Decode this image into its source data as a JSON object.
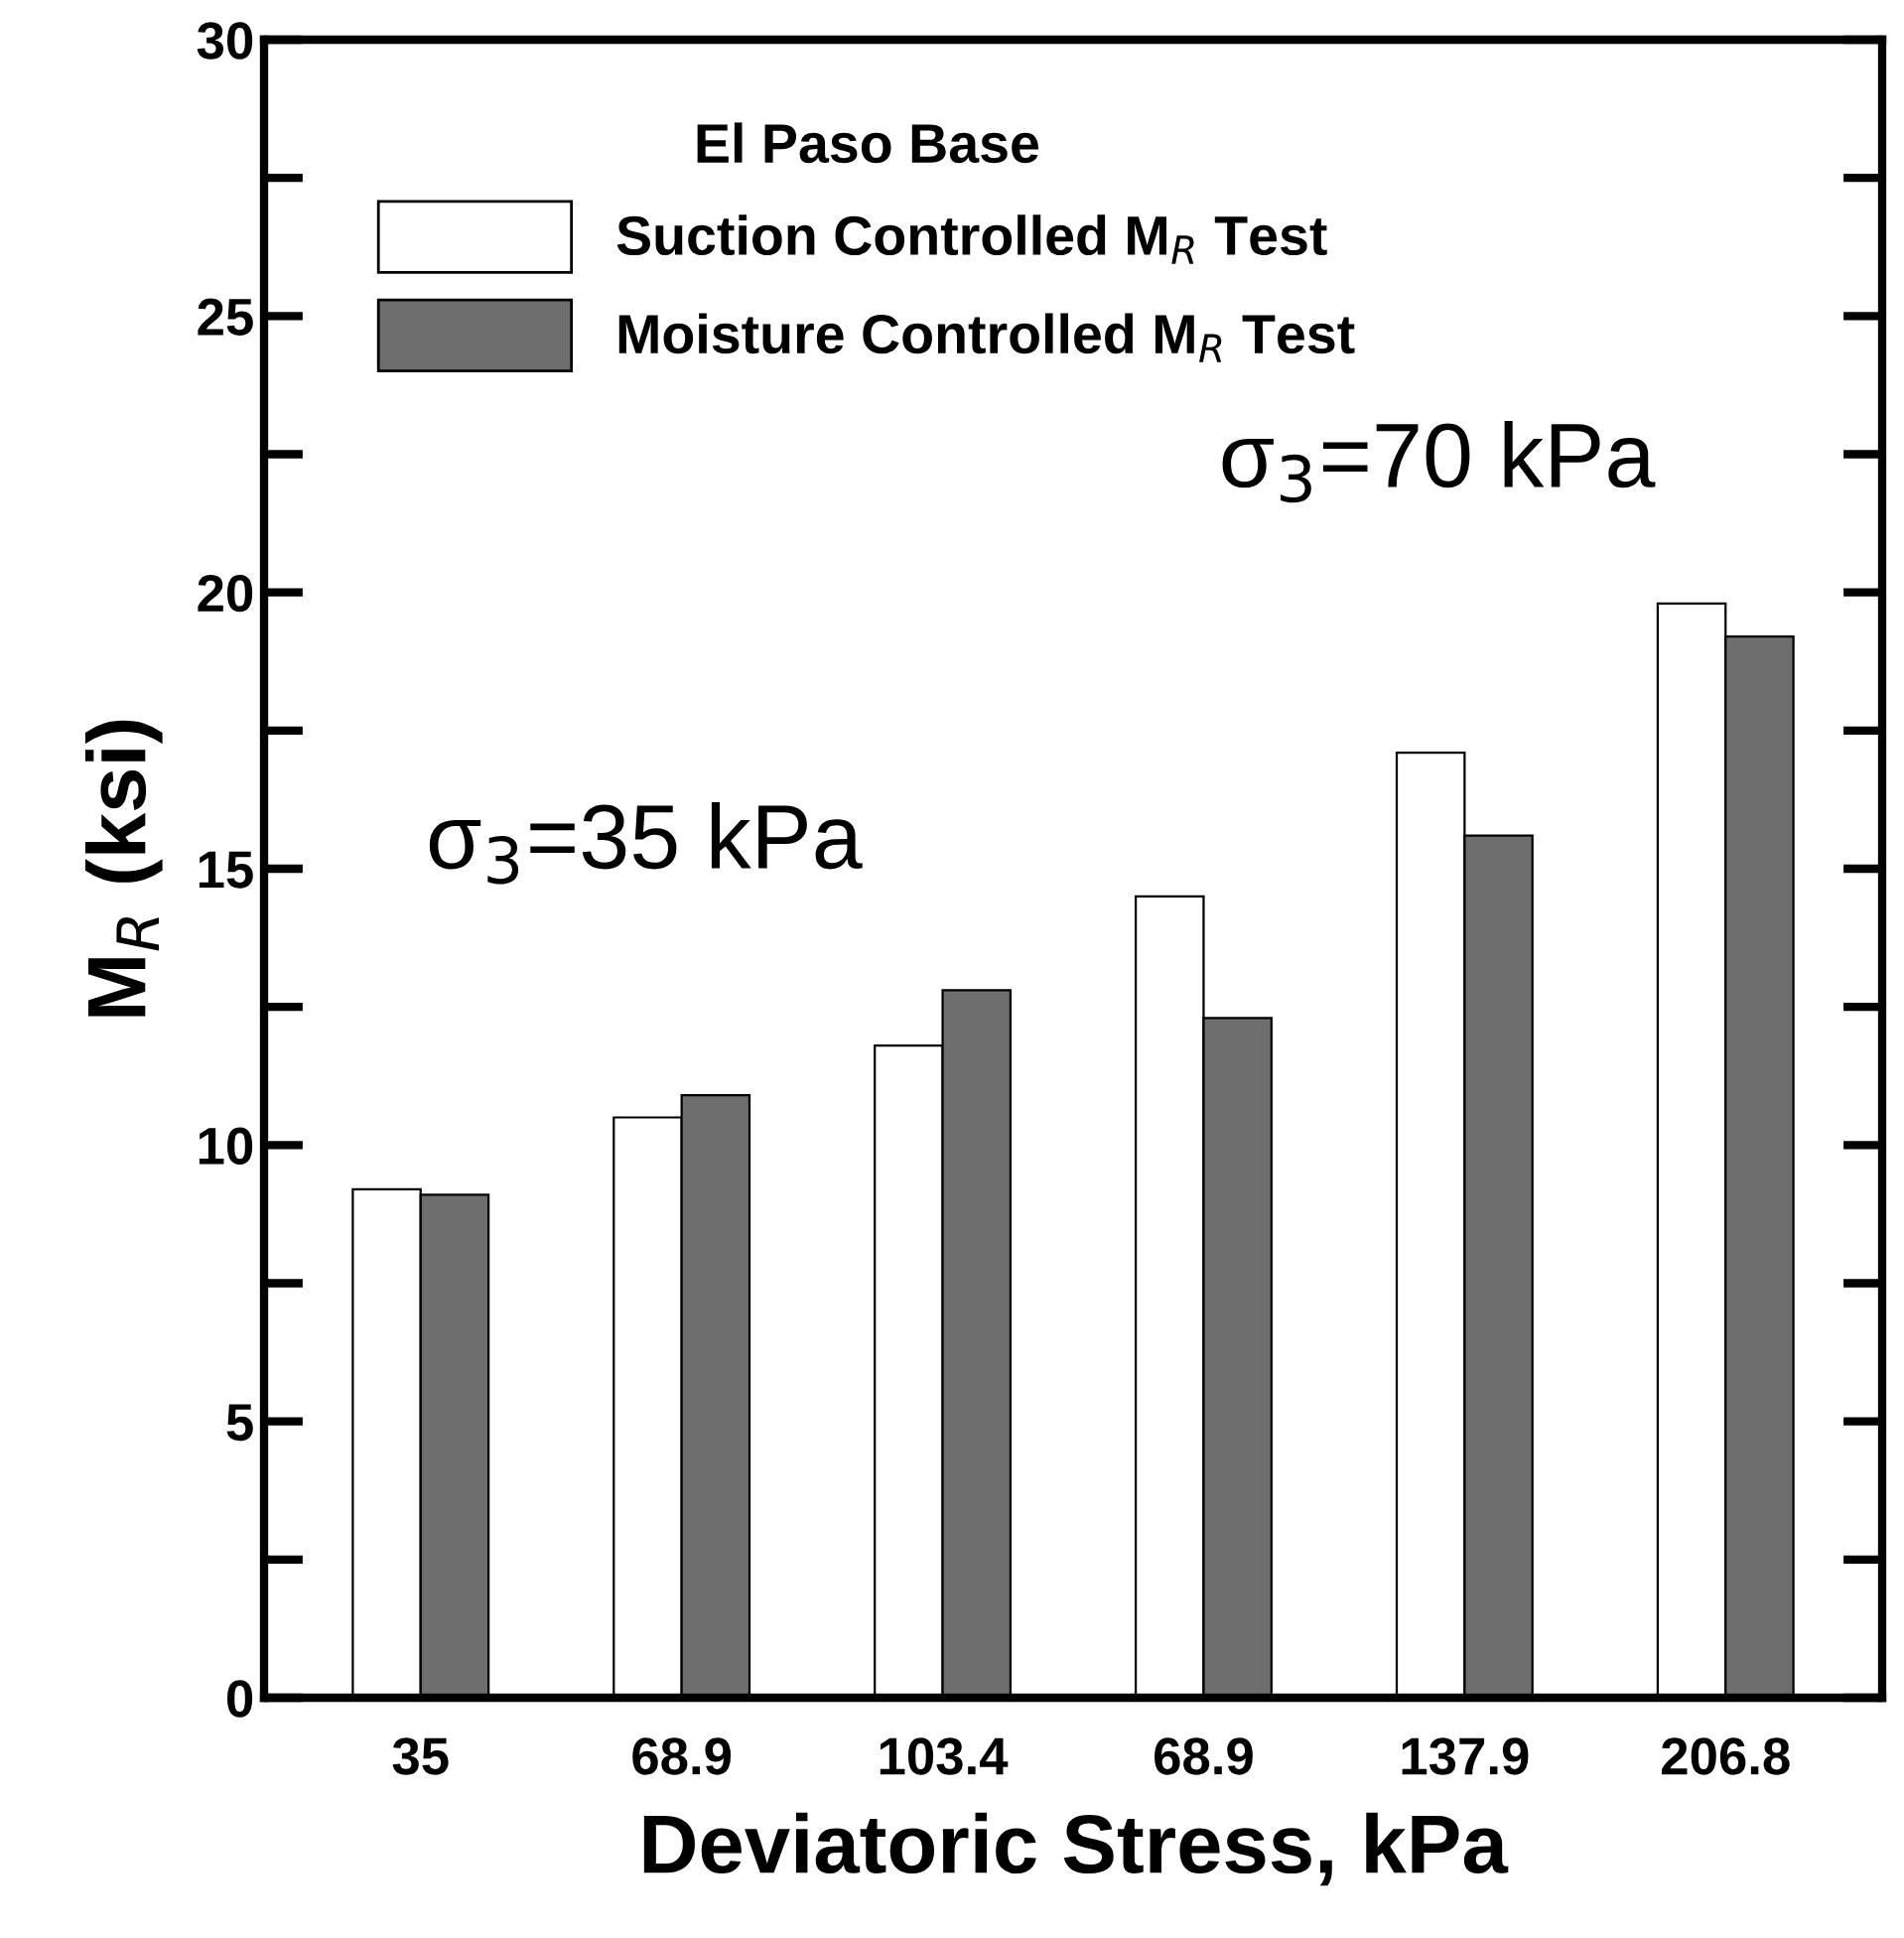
{
  "chart_data": {
    "type": "bar",
    "xlabel": "Deviatoric Stress, kPa",
    "ylabel": "M$_{R}$ (ksi)",
    "legend_title": "El Paso Base",
    "categories": [
      "35",
      "68.9",
      "103.4",
      "68.9",
      "137.9",
      "206.8"
    ],
    "series": [
      {
        "name": "Suction Controlled M$_{R}$ Test",
        "color": "#ffffff",
        "values": [
          9.2,
          10.5,
          11.8,
          14.5,
          17.1,
          19.8
        ]
      },
      {
        "name": "Moisture Controlled M$_{R}$ Test",
        "color": "#6e6e6e",
        "values": [
          9.1,
          10.9,
          12.8,
          12.3,
          15.6,
          19.2
        ]
      }
    ],
    "ylim": [
      0,
      30
    ],
    "yticks": [
      0,
      5,
      10,
      15,
      20,
      25,
      30
    ],
    "annotations": [
      "σ$_{3}$=35 kPa",
      "σ$_{3}$=70 kPa"
    ],
    "legend": "top left",
    "grid": false
  }
}
